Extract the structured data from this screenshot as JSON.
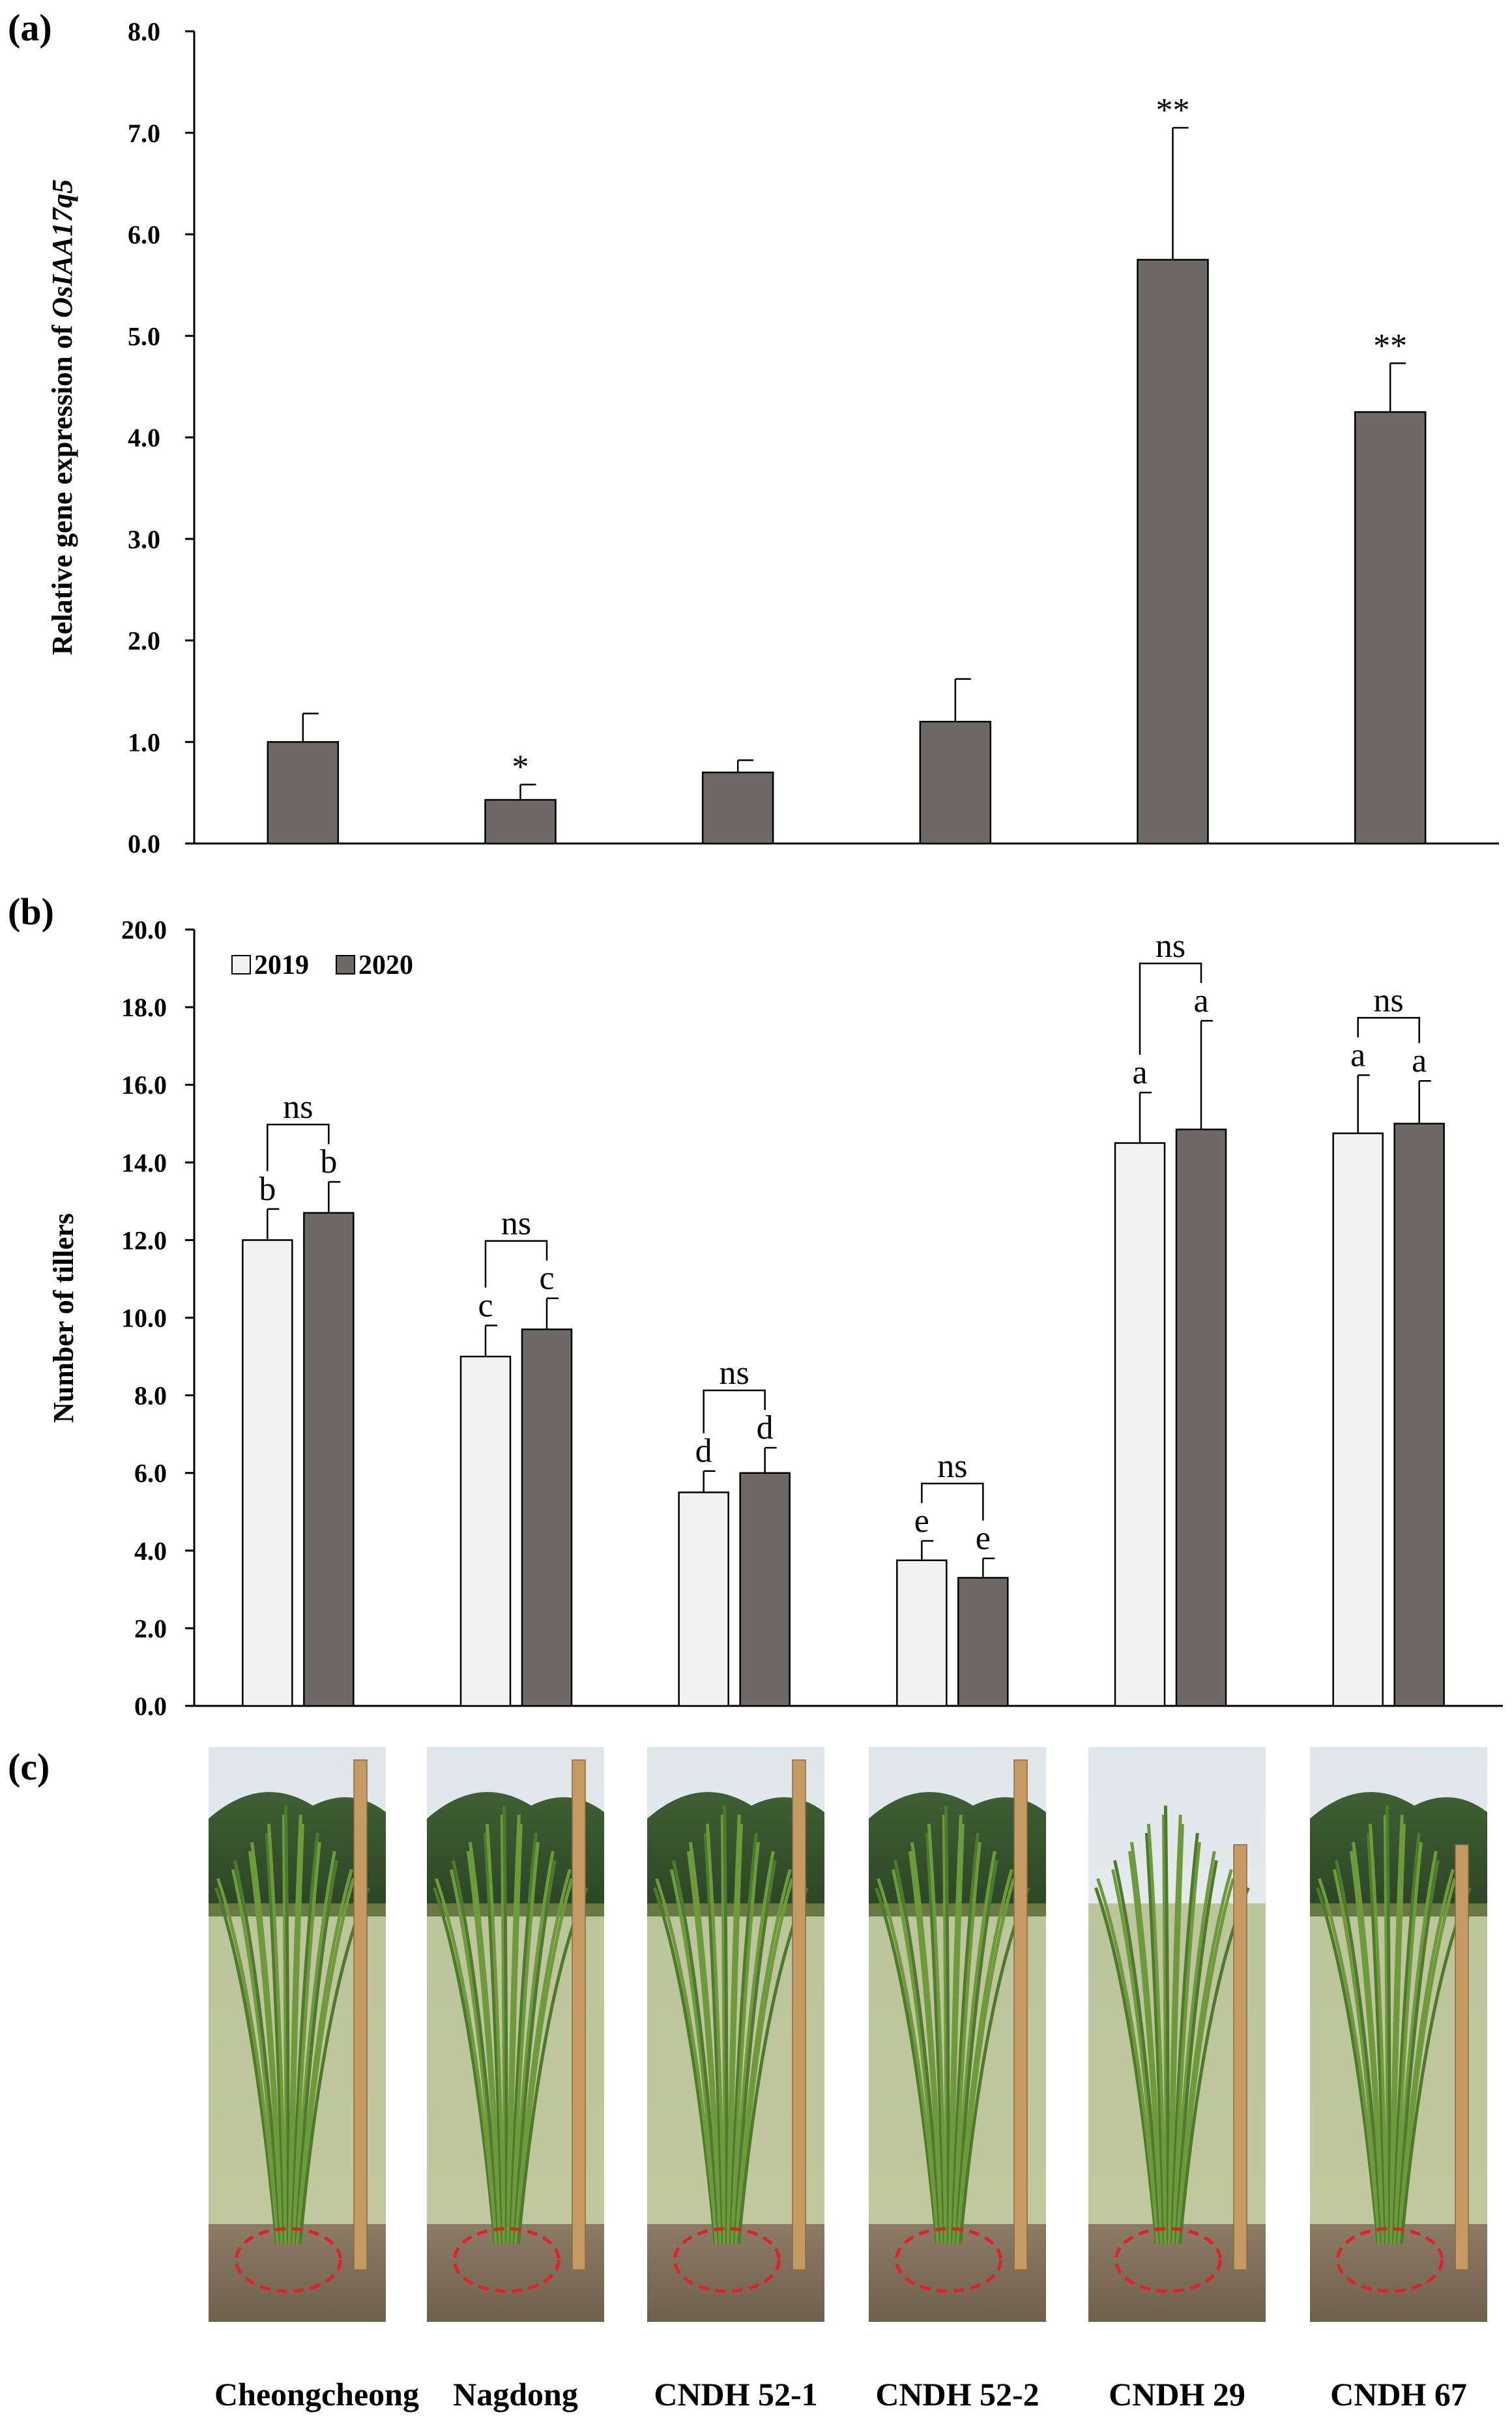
{
  "chart_data": [
    {
      "panel": "(a)",
      "type": "bar",
      "title": "",
      "xlabel": "",
      "ylabel_prefix": "Relative gene expression of ",
      "ylabel_gene": "OsIAA17q5",
      "ylim": [
        0,
        8
      ],
      "yticks": [
        "0.0",
        "1.0",
        "2.0",
        "3.0",
        "4.0",
        "5.0",
        "6.0",
        "7.0",
        "8.0"
      ],
      "categories": [
        "Cheongcheong",
        "Nagdong",
        "CNDH 52-1",
        "CNDH 52-2",
        "CNDH 29",
        "CNDH 67"
      ],
      "values": [
        1.0,
        0.43,
        0.7,
        1.2,
        5.75,
        4.25
      ],
      "errors": [
        0.28,
        0.15,
        0.12,
        0.42,
        1.3,
        0.48
      ],
      "significance": [
        "",
        "*",
        "",
        "",
        "**",
        "**"
      ],
      "color": "#6e6868"
    },
    {
      "panel": "(b)",
      "type": "bar",
      "title": "",
      "xlabel": "",
      "ylabel": "Number of tillers",
      "ylim": [
        0,
        20
      ],
      "yticks": [
        "0.0",
        "2.0",
        "4.0",
        "6.0",
        "8.0",
        "10.0",
        "12.0",
        "14.0",
        "16.0",
        "18.0",
        "20.0"
      ],
      "legend_position": "top-left",
      "categories": [
        "Cheongcheong",
        "Nagdong",
        "CNDH 52-1",
        "CNDH 52-2",
        "CNDH 29",
        "CNDH 67"
      ],
      "series": [
        {
          "name": "2019",
          "color": "#f2f2f2",
          "values": [
            12.0,
            9.0,
            5.5,
            3.75,
            14.5,
            14.75
          ],
          "errors": [
            0.8,
            0.8,
            0.55,
            0.5,
            1.3,
            1.5
          ],
          "letters": [
            "b",
            "c",
            "d",
            "e",
            "a",
            "a"
          ]
        },
        {
          "name": "2020",
          "color": "#6e6868",
          "values": [
            12.7,
            9.7,
            6.0,
            3.3,
            14.85,
            15.0
          ],
          "errors": [
            0.8,
            0.8,
            0.65,
            0.5,
            2.8,
            1.1
          ],
          "letters": [
            "b",
            "c",
            "d",
            "e",
            "a",
            "a"
          ]
        }
      ],
      "pair_comparison": [
        "ns",
        "ns",
        "ns",
        "ns",
        "ns",
        "ns"
      ]
    }
  ],
  "panel_c": {
    "label": "(c)",
    "photos": [
      "Cheongcheong",
      "Nagdong",
      "CNDH 52-1",
      "CNDH 52-2",
      "CNDH 29",
      "CNDH 67"
    ],
    "circle_color": "#e0202a",
    "ruler_color": "#c69a63"
  }
}
